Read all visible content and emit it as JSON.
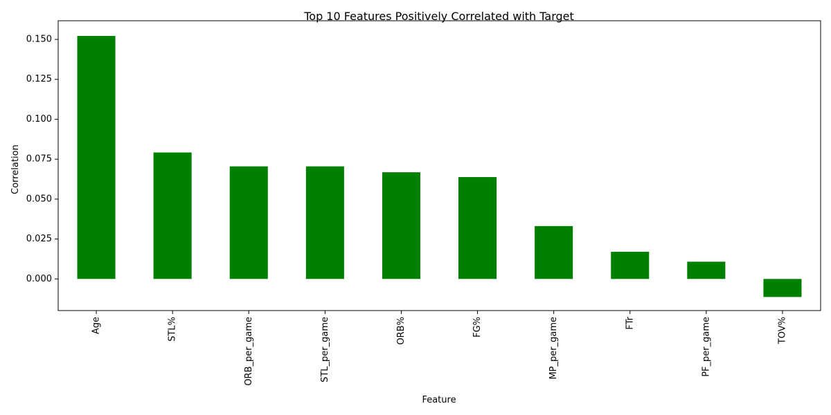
{
  "chart_data": {
    "type": "bar",
    "title": "Top 10 Features Positively Correlated with Target",
    "xlabel": "Feature",
    "ylabel": "Correlation",
    "categories": [
      "Age",
      "STL%",
      "ORB_per_game",
      "STL_per_game",
      "ORB%",
      "FG%",
      "MP_per_game",
      "FTr",
      "PF_per_game",
      "TOV%"
    ],
    "values": [
      0.1522,
      0.0792,
      0.0705,
      0.0705,
      0.0668,
      0.0638,
      0.0331,
      0.017,
      0.0108,
      -0.0113
    ],
    "ylim": [
      -0.0198,
      0.1617
    ],
    "yticks": [
      0.0,
      0.025,
      0.05,
      0.075,
      0.1,
      0.125,
      0.15
    ],
    "ytick_labels": [
      "0.000",
      "0.025",
      "0.050",
      "0.075",
      "0.100",
      "0.125",
      "0.150"
    ],
    "bar_color": "#008000",
    "grid": false,
    "legend": "none"
  }
}
